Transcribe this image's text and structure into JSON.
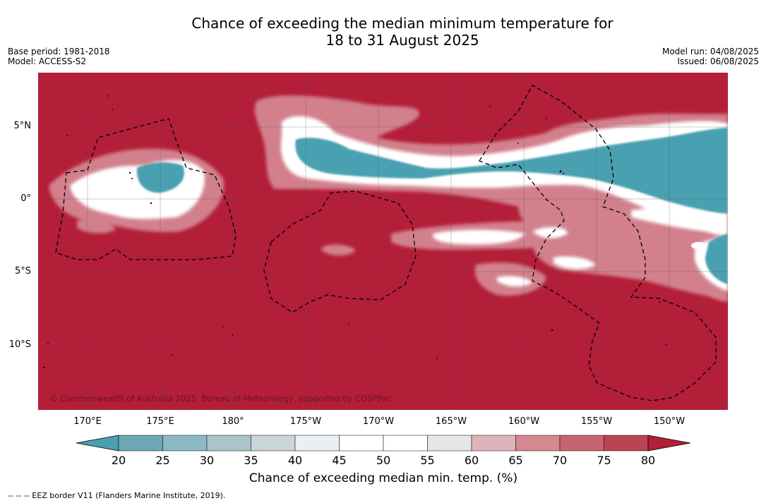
{
  "title": {
    "line1": "Chance of exceeding the median minimum temperature for",
    "line2": "18 to 31 August 2025"
  },
  "meta_left": {
    "base_period": "Base period: 1981-2018",
    "model": "Model: ACCESS-S2"
  },
  "meta_right": {
    "model_run": "Model run: 04/08/2025",
    "issued": "Issued: 06/08/2025"
  },
  "lat_labels": [
    "5°N",
    "0°",
    "5°S",
    "10°S"
  ],
  "lon_labels": [
    "170°E",
    "175°E",
    "180°",
    "175°W",
    "170°W",
    "165°W",
    "160°W",
    "155°W",
    "150°W"
  ],
  "colorbar": {
    "ticks": [
      "20",
      "25",
      "30",
      "35",
      "40",
      "45",
      "50",
      "55",
      "60",
      "65",
      "70",
      "75",
      "80"
    ],
    "colors": [
      "#4aa0b0",
      "#6ba8b4",
      "#8bbac4",
      "#aac4c8",
      "#ccd6da",
      "#eaf0f2",
      "#ffffff",
      "#ffffff",
      "#e6e6e6",
      "#ddb4ba",
      "#d58890",
      "#c66470",
      "#bb4454",
      "#b31e38"
    ],
    "label": "Chance of exceeding median min. temp. (%)"
  },
  "map": {
    "base_color": "#b31e38",
    "low_color": "#4aa0b0"
  },
  "copyright": "© Commonwealth of Australia 2025, Bureau of Meteorology, supported by COSPPac",
  "footnote": "--  --  -- EEZ border V11 (Flanders Marine Institute, 2019)."
}
